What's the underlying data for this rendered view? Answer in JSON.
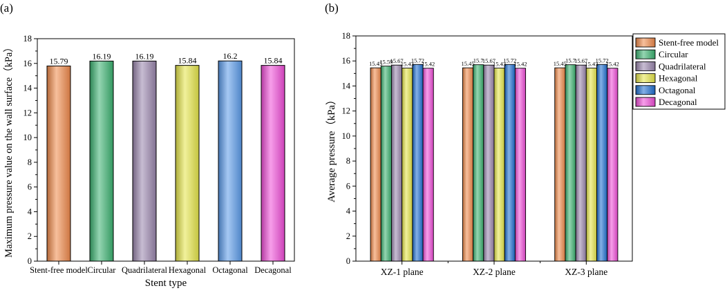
{
  "chart_data": [
    {
      "panel_label": "(a)",
      "type": "bar",
      "title": "",
      "xlabel": "Stent type",
      "ylabel": "Maximum pressure value on the wall surface（kPa）",
      "ylim": [
        0,
        18
      ],
      "yticks": [
        0,
        2,
        4,
        6,
        8,
        10,
        12,
        14,
        16,
        18
      ],
      "categories": [
        "Stent-free model",
        "Circular",
        "Quadrilateral",
        "Hexagonal",
        "Octagonal",
        "Decagonal"
      ],
      "values": [
        15.79,
        16.19,
        16.19,
        15.84,
        16.2,
        15.84
      ],
      "value_labels": [
        "15.79",
        "16.19",
        "16.19",
        "15.84",
        "16.2",
        "15.84"
      ],
      "colors": [
        "#f08a4b",
        "#3cb371",
        "#9a86ad",
        "#e6e64a",
        "#5b9bea",
        "#f04ed8"
      ],
      "grid": false
    },
    {
      "panel_label": "(b)",
      "type": "bar",
      "title": "",
      "xlabel": "",
      "ylabel": "Average pressure（kPa）",
      "ylim": [
        0,
        18
      ],
      "yticks": [
        0,
        2,
        4,
        6,
        8,
        10,
        12,
        14,
        16,
        18
      ],
      "categories": [
        "XZ-1 plane",
        "XZ-2 plane",
        "XZ-3 plane"
      ],
      "series": [
        {
          "name": "Stent-free model",
          "color": "#f08a4b",
          "values": [
            15.45,
            15.45,
            15.45
          ],
          "labels": [
            "15.45",
            "15.45",
            "15.45"
          ]
        },
        {
          "name": "Circular",
          "color": "#3cb371",
          "values": [
            15.59,
            15.7,
            15.7
          ],
          "labels": [
            "15.59",
            "15.7",
            "15.7"
          ]
        },
        {
          "name": "Quadrilateral",
          "color": "#9a86ad",
          "values": [
            15.67,
            15.67,
            15.67
          ],
          "labels": [
            "15.67",
            "15.67",
            "15.67"
          ]
        },
        {
          "name": "Hexagonal",
          "color": "#e6e64a",
          "values": [
            15.43,
            15.43,
            15.43
          ],
          "labels": [
            "15.43",
            "15.43",
            "15.43"
          ]
        },
        {
          "name": "Octagonal",
          "color": "#1f6fd1",
          "values": [
            15.72,
            15.72,
            15.72
          ],
          "labels": [
            "15.72",
            "15.72",
            "15.72"
          ]
        },
        {
          "name": "Decagonal",
          "color": "#f04ed8",
          "values": [
            15.42,
            15.42,
            15.42
          ],
          "labels": [
            "15.42",
            "15.42",
            "15.42"
          ]
        }
      ],
      "legend_position": "top-right",
      "grid": false
    }
  ]
}
